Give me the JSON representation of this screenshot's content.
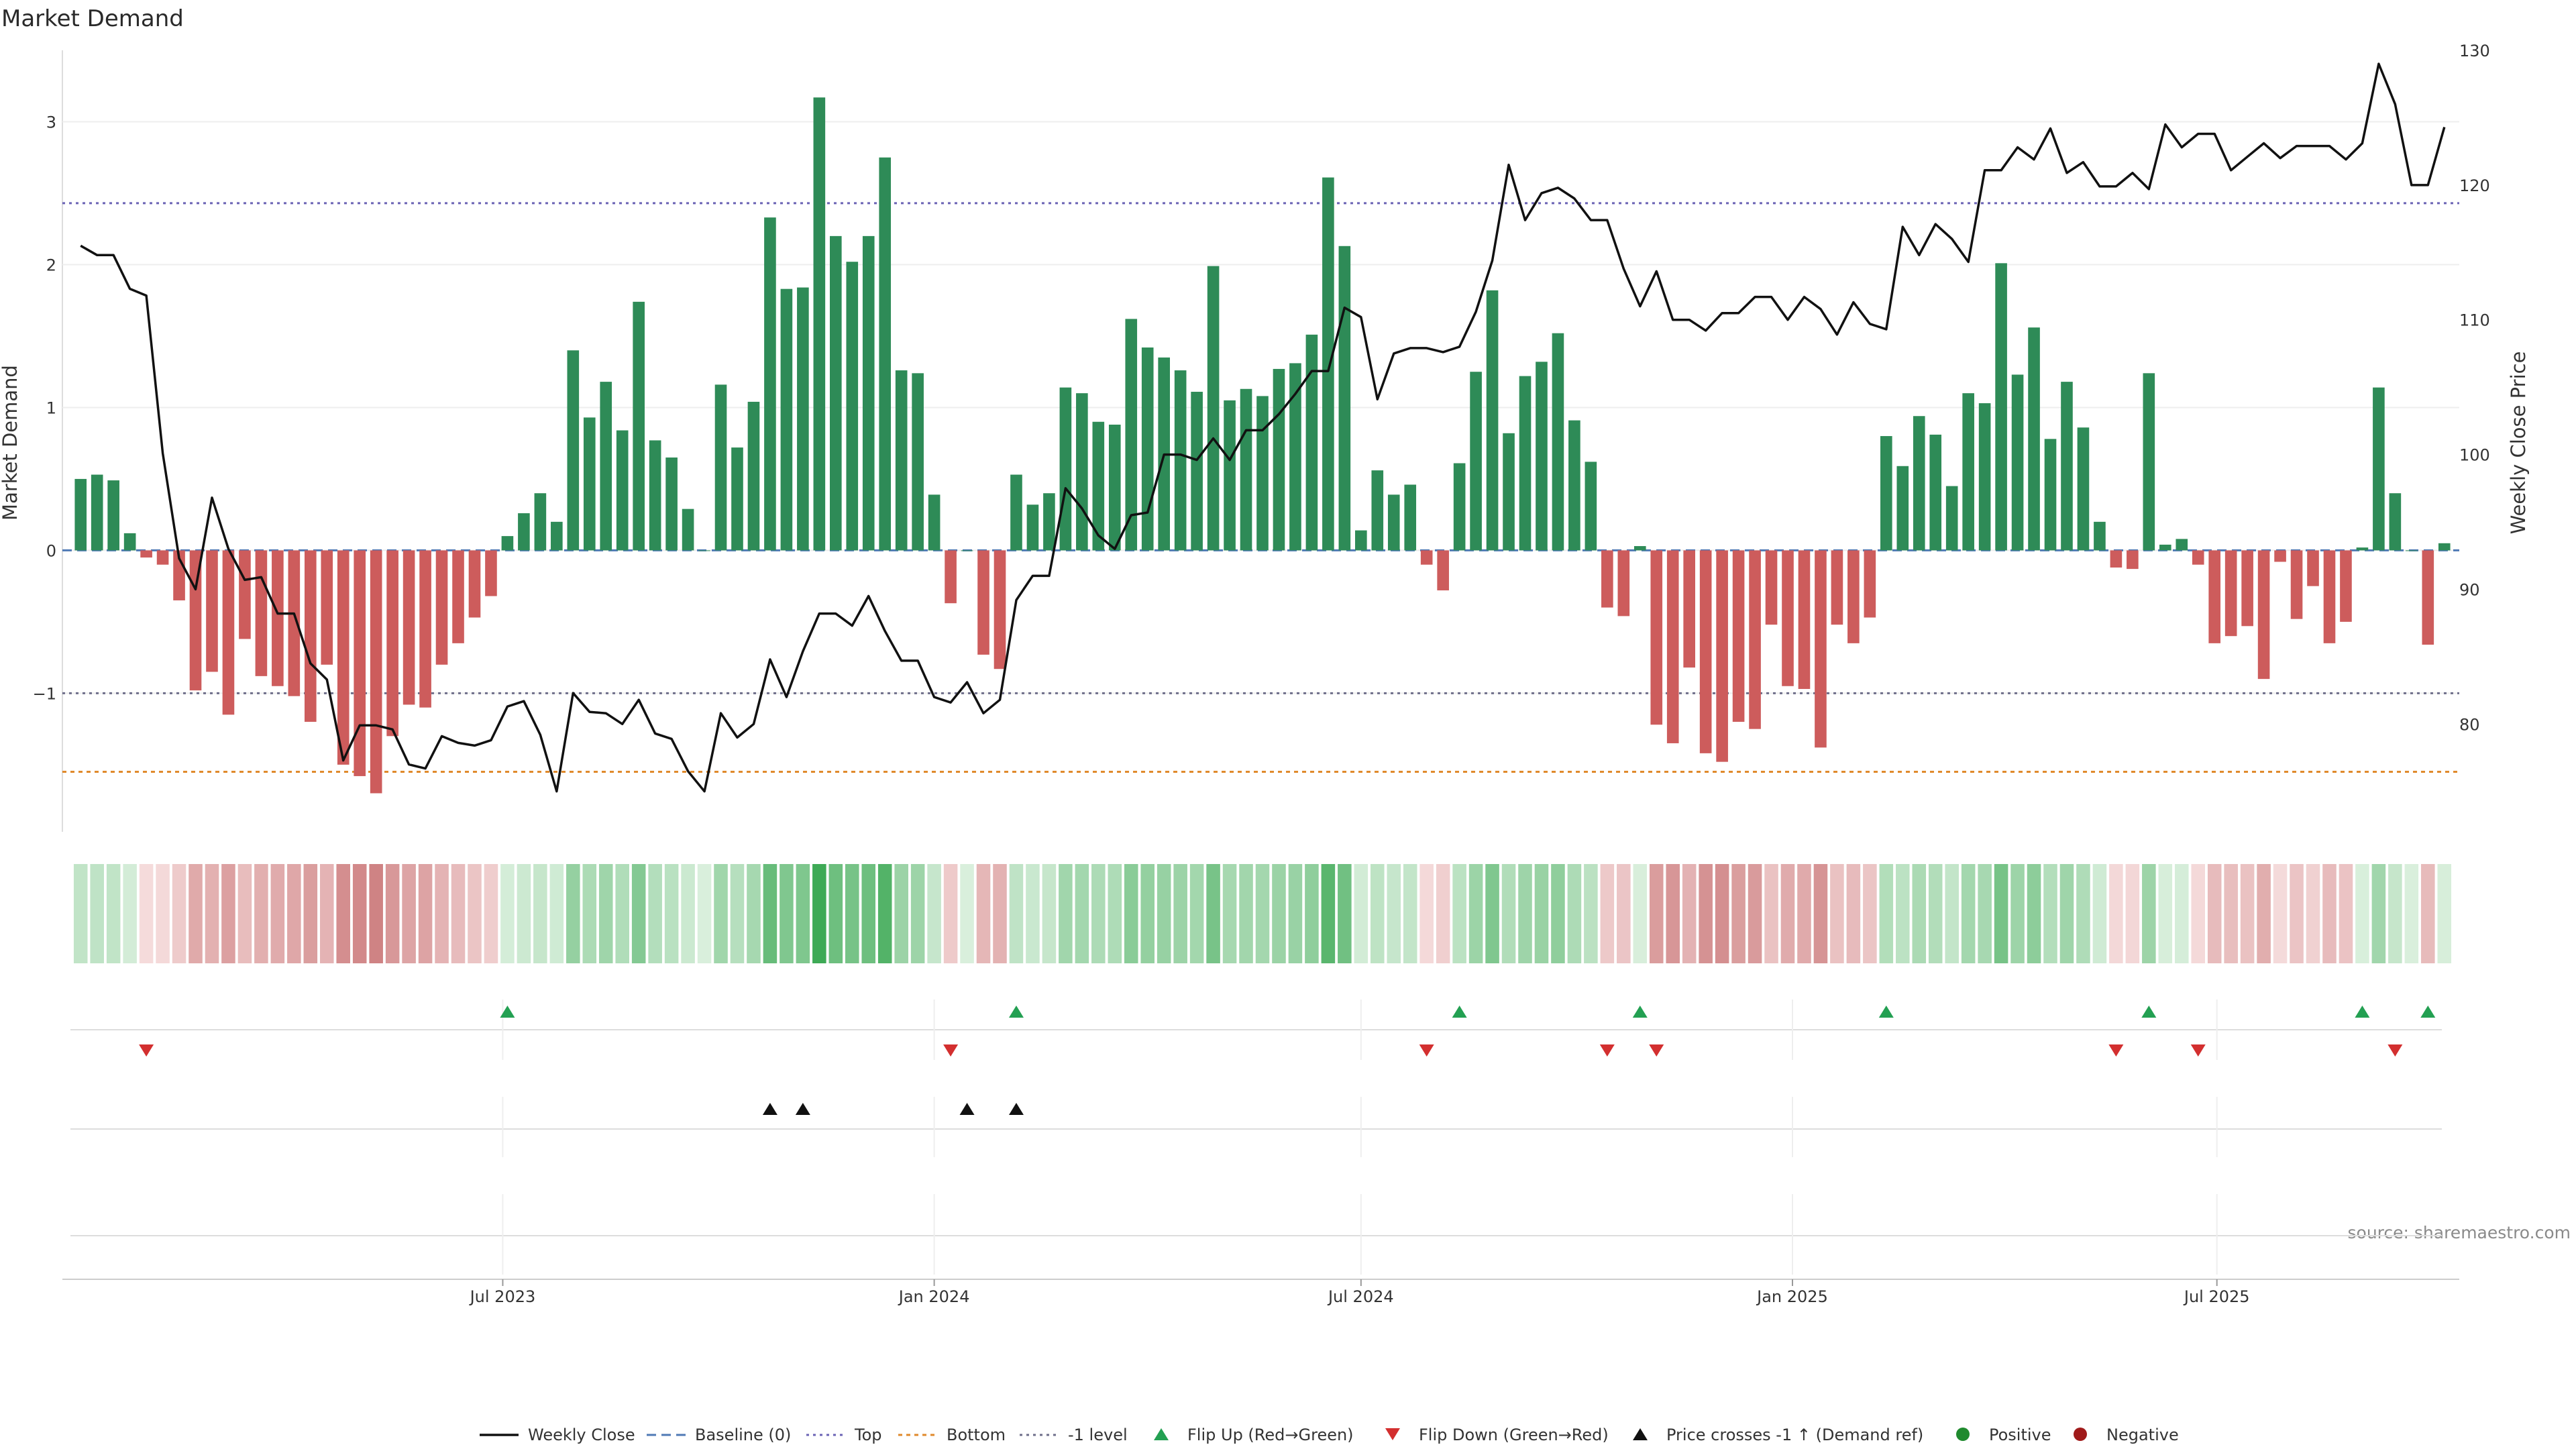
{
  "chart_data": {
    "type": "bar",
    "title": "Market Demand",
    "ylabel_left": "Market Demand",
    "ylabel_right": "Weekly Close Price",
    "left_ylim": [
      -1.97,
      3.5
    ],
    "left_yticks": [
      -1,
      0,
      1,
      2,
      3
    ],
    "right_ylim": [
      72,
      130
    ],
    "right_yticks": [
      80,
      90,
      100,
      110,
      120,
      130
    ],
    "date_start": "2023-01-02",
    "date_step_days": 7,
    "xticks": [
      {
        "date": "2023-07-01",
        "label": "Jul 2023"
      },
      {
        "date": "2024-01-01",
        "label": "Jan 2024"
      },
      {
        "date": "2024-07-01",
        "label": "Jul 2024"
      },
      {
        "date": "2025-01-01",
        "label": "Jan 2025"
      },
      {
        "date": "2025-07-01",
        "label": "Jul 2025"
      }
    ],
    "reference_lines": {
      "baseline": 0,
      "top": 2.43,
      "bottom": -1.55,
      "minus_one": -1
    },
    "demand": [
      0.5,
      0.53,
      0.49,
      0.12,
      -0.05,
      -0.1,
      -0.35,
      -0.98,
      -0.85,
      -1.15,
      -0.62,
      -0.88,
      -0.95,
      -1.02,
      -1.2,
      -0.8,
      -1.5,
      -1.58,
      -1.7,
      -1.3,
      -1.08,
      -1.1,
      -0.8,
      -0.65,
      -0.47,
      -0.32,
      0.1,
      0.26,
      0.4,
      0.2,
      1.4,
      0.93,
      1.18,
      0.84,
      1.74,
      0.77,
      0.65,
      0.29,
      0.0,
      1.16,
      0.72,
      1.04,
      2.33,
      1.83,
      1.84,
      3.17,
      2.2,
      2.02,
      2.2,
      2.75,
      1.26,
      1.24,
      0.39,
      -0.37,
      0.0,
      -0.73,
      -0.83,
      0.53,
      0.32,
      0.4,
      1.14,
      1.1,
      0.9,
      0.88,
      1.62,
      1.42,
      1.35,
      1.26,
      1.11,
      1.99,
      1.05,
      1.13,
      1.08,
      1.27,
      1.31,
      1.51,
      2.61,
      2.13,
      0.14,
      0.56,
      0.39,
      0.46,
      -0.1,
      -0.28,
      0.61,
      1.25,
      1.82,
      0.82,
      1.22,
      1.32,
      1.52,
      0.91,
      0.62,
      -0.4,
      -0.46,
      0.03,
      -1.22,
      -1.35,
      -0.82,
      -1.42,
      -1.48,
      -1.2,
      -1.25,
      -0.52,
      -0.95,
      -0.97,
      -1.38,
      -0.52,
      -0.65,
      -0.47,
      0.8,
      0.59,
      0.94,
      0.81,
      0.45,
      1.1,
      1.03,
      2.01,
      1.23,
      1.56,
      0.78,
      1.18,
      0.86,
      0.2,
      -0.12,
      -0.13,
      1.24,
      0.04,
      0.08,
      -0.1,
      -0.65,
      -0.6,
      -0.53,
      -0.9,
      -0.08,
      -0.48,
      -0.25,
      -0.65,
      -0.5,
      0.02,
      1.14,
      0.4,
      0.0,
      -0.66,
      0.05
    ],
    "close": [
      115.5,
      114.8,
      114.8,
      112.3,
      111.8,
      100.1,
      92.3,
      90.0,
      96.8,
      93.0,
      90.7,
      90.9,
      88.2,
      88.2,
      84.5,
      83.3,
      77.3,
      79.9,
      79.9,
      79.6,
      77.0,
      76.7,
      79.1,
      78.6,
      78.4,
      78.8,
      81.3,
      81.7,
      79.2,
      75.0,
      82.3,
      80.9,
      80.8,
      80.0,
      81.8,
      79.3,
      78.9,
      76.5,
      75.0,
      80.8,
      79.0,
      80.0,
      84.8,
      82.0,
      85.4,
      88.2,
      88.2,
      87.3,
      89.5,
      86.9,
      84.7,
      84.7,
      82.0,
      81.6,
      83.1,
      80.8,
      81.8,
      89.2,
      91.0,
      91.0,
      97.5,
      96.0,
      94.0,
      93.0,
      95.5,
      95.7,
      100.0,
      100.0,
      99.6,
      101.2,
      99.6,
      101.8,
      101.8,
      103.0,
      104.5,
      106.2,
      106.2,
      110.9,
      110.2,
      104.1,
      107.5,
      107.9,
      107.9,
      107.6,
      108.0,
      110.6,
      114.4,
      121.5,
      117.4,
      119.4,
      119.8,
      119.0,
      117.4,
      117.4,
      113.8,
      111.0,
      113.6,
      110.0,
      110.0,
      109.2,
      110.5,
      110.5,
      111.7,
      111.7,
      110.0,
      111.7,
      110.8,
      108.9,
      111.3,
      109.7,
      109.3,
      116.9,
      114.8,
      117.1,
      116.0,
      114.3,
      121.1,
      121.1,
      122.8,
      121.9,
      124.2,
      120.9,
      121.7,
      119.9,
      119.9,
      120.9,
      119.7,
      124.5,
      122.8,
      123.8,
      123.8,
      121.1,
      122.1,
      123.1,
      122.0,
      122.9,
      122.9,
      122.9,
      121.9,
      123.1,
      129.0,
      126.0,
      120.0,
      120.0,
      124.3
    ],
    "flip_up_weeks": [
      26,
      57,
      84,
      95,
      110,
      126,
      139,
      143
    ],
    "flip_down_weeks": [
      4,
      53,
      82,
      93,
      96,
      124,
      129,
      141
    ],
    "price_cross_weeks": [
      42,
      44,
      54,
      57
    ],
    "legend": [
      "Weekly Close",
      "Baseline (0)",
      "Top",
      "Bottom",
      "-1 level",
      "Flip Up (Red→Green)",
      "Flip Down (Green→Red)",
      "Price crosses -1 ↑ (Demand ref)",
      "Positive",
      "Negative"
    ],
    "source": "source: sharemaestro.com",
    "colors": {
      "positive_bar": "#2e8b57",
      "negative_bar": "#cd5c5c",
      "close_line": "#111111",
      "baseline": "#4f79b5",
      "top_line": "#6b63b5",
      "bottom_line": "#e08a2c",
      "minus_one_line": "#6e6e8a",
      "flip_up": "#23a052",
      "flip_down": "#d32f2f",
      "price_cross": "#111111",
      "positive_dot": "#1f8a2e",
      "negative_dot": "#a01a1a"
    }
  }
}
